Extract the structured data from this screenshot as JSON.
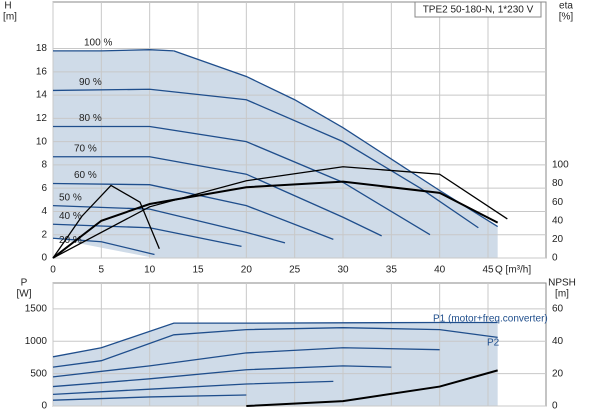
{
  "chart_data": [
    {
      "type": "line",
      "title": "TPE2 50-180-N, 1*230 V",
      "y_label": "H",
      "y_unit": "[m]",
      "y2_label": "eta",
      "y2_unit": "[%]",
      "x_label": "Q [m³/h]",
      "xlim": [
        0,
        51
      ],
      "xticks": [
        0,
        5,
        10,
        15,
        20,
        25,
        30,
        35,
        40,
        45
      ],
      "ylim": [
        0,
        22
      ],
      "yticks": [
        0,
        2,
        4,
        6,
        8,
        10,
        12,
        14,
        16,
        18
      ],
      "y2lim": [
        0,
        275
      ],
      "y2ticks": [
        0,
        20,
        40,
        60,
        80,
        100
      ],
      "grid": true,
      "series": [
        {
          "name": "100 %",
          "color": "#1f4e8c",
          "x": [
            0,
            5,
            10,
            12.5
          ],
          "values": [
            17.8,
            17.8,
            17.9,
            17.8
          ]
        },
        {
          "color": "#1f4e8c",
          "x": [
            12.5,
            20,
            25,
            30,
            35,
            40,
            46
          ],
          "values": [
            17.8,
            15.6,
            13.6,
            11.2,
            8.5,
            5.8,
            2.7
          ]
        },
        {
          "name": "90 %",
          "color": "#1f4e8c",
          "x": [
            0,
            10,
            20,
            30,
            38,
            44
          ],
          "values": [
            14.4,
            14.5,
            13.6,
            10,
            6,
            2.6
          ]
        },
        {
          "name": "80 %",
          "color": "#1f4e8c",
          "x": [
            0,
            10,
            20,
            30,
            39
          ],
          "values": [
            11.3,
            11.3,
            10,
            6.5,
            2
          ]
        },
        {
          "name": "70 %",
          "color": "#1f4e8c",
          "x": [
            0,
            10,
            20,
            30,
            34
          ],
          "values": [
            8.7,
            8.7,
            7.2,
            3.5,
            1.9
          ]
        },
        {
          "name": "60 %",
          "color": "#1f4e8c",
          "x": [
            0,
            10,
            20,
            29
          ],
          "values": [
            6.4,
            6.3,
            4.5,
            1.6
          ]
        },
        {
          "name": "50 %",
          "color": "#1f4e8c",
          "x": [
            0,
            10,
            20,
            24
          ],
          "values": [
            4.5,
            4.2,
            2.2,
            1.3
          ]
        },
        {
          "name": "40 %",
          "color": "#1f4e8c",
          "x": [
            0,
            10,
            19.5
          ],
          "values": [
            2.9,
            2.6,
            1
          ]
        },
        {
          "name": "20 %",
          "color": "#1f4e8c",
          "x": [
            0,
            5,
            10.5
          ],
          "values": [
            1.7,
            1.4,
            0.3
          ]
        },
        {
          "color": "#000000",
          "axis": "y2",
          "width": 2,
          "x": [
            0,
            5,
            10,
            20,
            30,
            40,
            46
          ],
          "values": [
            0,
            40,
            58,
            76,
            82,
            70,
            38
          ]
        },
        {
          "color": "#000000",
          "axis": "y2",
          "x": [
            0,
            10,
            20,
            30,
            40,
            47
          ],
          "values": [
            0,
            55,
            83,
            98,
            90,
            42
          ]
        },
        {
          "color": "#000000",
          "axis": "y2",
          "x": [
            0,
            3,
            6,
            9,
            11
          ],
          "values": [
            0,
            45,
            78,
            60,
            10
          ]
        }
      ]
    },
    {
      "type": "line",
      "y_label": "P",
      "y_unit": "[W]",
      "y2_label": "NPSH",
      "y2_unit": "[m]",
      "xlim": [
        0,
        51
      ],
      "ylim": [
        0,
        1900
      ],
      "yticks": [
        0,
        500,
        1000,
        1500
      ],
      "y2lim": [
        0,
        76
      ],
      "y2ticks": [
        0,
        20,
        40,
        60
      ],
      "grid": true,
      "series": [
        {
          "name": "P1 (motor+freq.converter)",
          "color": "#1f4e8c",
          "x": [
            0,
            5,
            12.5,
            20,
            30,
            40,
            46
          ],
          "values": [
            760,
            900,
            1280,
            1280,
            1285,
            1290,
            1290
          ]
        },
        {
          "name": "P2",
          "color": "#1f4e8c",
          "x": [
            0,
            5,
            12.5,
            20,
            30,
            40,
            46
          ],
          "values": [
            600,
            700,
            1100,
            1180,
            1210,
            1180,
            1060
          ]
        },
        {
          "color": "#1f4e8c",
          "x": [
            0,
            10,
            20,
            30,
            40
          ],
          "values": [
            450,
            620,
            820,
            900,
            870
          ]
        },
        {
          "color": "#1f4e8c",
          "x": [
            0,
            10,
            20,
            30,
            35
          ],
          "values": [
            300,
            420,
            560,
            620,
            600
          ]
        },
        {
          "color": "#1f4e8c",
          "x": [
            0,
            10,
            20,
            29
          ],
          "values": [
            180,
            260,
            340,
            380
          ]
        },
        {
          "color": "#1f4e8c",
          "x": [
            0,
            10,
            20
          ],
          "values": [
            90,
            140,
            170
          ]
        },
        {
          "color": "#000000",
          "axis": "y2",
          "width": 2,
          "x": [
            20,
            30,
            40,
            46
          ],
          "values": [
            0,
            3,
            12,
            22
          ]
        }
      ]
    }
  ]
}
